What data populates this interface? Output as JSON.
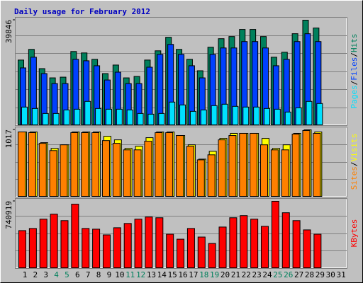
{
  "chart_data": {
    "title": "Daily usage for February 2012",
    "categories": [
      "1",
      "2",
      "3",
      "4",
      "5",
      "6",
      "7",
      "8",
      "9",
      "10",
      "11",
      "12",
      "13",
      "14",
      "15",
      "16",
      "17",
      "18",
      "19",
      "20",
      "21",
      "22",
      "23",
      "24",
      "25",
      "26",
      "27",
      "28",
      "29",
      "30",
      "31"
    ],
    "category_colors": [
      "#000000",
      "#000000",
      "#000000",
      "#00805c",
      "#00805c",
      "#000000",
      "#000000",
      "#000000",
      "#000000",
      "#000000",
      "#00805c",
      "#00805c",
      "#000000",
      "#000000",
      "#000000",
      "#000000",
      "#000000",
      "#00805c",
      "#00805c",
      "#000000",
      "#000000",
      "#000000",
      "#000000",
      "#000000",
      "#00805c",
      "#00805c",
      "#000000",
      "#000000",
      "#000000",
      "#000000",
      "#000000"
    ],
    "legend_separator": "/",
    "grid": true,
    "panels": [
      {
        "type": "bar",
        "ylim": [
          0,
          39846
        ],
        "yticks": [
          39846
        ],
        "series": [
          {
            "name": "Hits",
            "color": "#00805c",
            "values": [
              24670,
              28730,
              21410,
              17890,
              18160,
              27920,
              27380,
              24940,
              19520,
              22770,
              17890,
              18430,
              24670,
              28190,
              33340,
              28730,
              24940,
              20600,
              29550,
              32800,
              33610,
              36320,
              36320,
              33610,
              25750,
              27650,
              34700,
              39846,
              36870,
              null,
              null
            ]
          },
          {
            "name": "Files",
            "color": "#0040ff",
            "values": [
              21680,
              25750,
              19520,
              15720,
              15720,
              24940,
              24390,
              22500,
              17070,
              20060,
              15720,
              15720,
              21950,
              26830,
              30630,
              26830,
              22500,
              17890,
              26830,
              29270,
              29270,
              31710,
              31710,
              29270,
              22500,
              24940,
              31710,
              34690,
              31710,
              null,
              null
            ]
          },
          {
            "name": "Pages",
            "color": "#00e0ff",
            "values": [
              6780,
              6230,
              4340,
              4340,
              5690,
              5960,
              8940,
              6230,
              5960,
              5960,
              5690,
              4340,
              4070,
              4340,
              8670,
              7590,
              5150,
              5690,
              7320,
              7860,
              7050,
              6780,
              6780,
              6230,
              5960,
              4880,
              6500,
              8940,
              8130,
              null,
              null
            ]
          }
        ]
      },
      {
        "type": "bar",
        "ylim": [
          0,
          1017
        ],
        "yticks": [
          1017
        ],
        "series": [
          {
            "name": "Visits",
            "color": "#ffff00",
            "values": [
              985,
              985,
              821,
              733,
              788,
              985,
              985,
              985,
              919,
              864,
              733,
              766,
              897,
              985,
              985,
              930,
              788,
              569,
              689,
              886,
              963,
              963,
              963,
              886,
              733,
              788,
              963,
              1017,
              985,
              null,
              null
            ]
          },
          {
            "name": "Sites",
            "color": "#ff8000",
            "values": [
              985,
              974,
              810,
              700,
              788,
              974,
              974,
              974,
              853,
              810,
              711,
              711,
              843,
              974,
              974,
              930,
              766,
              558,
              635,
              864,
              930,
              963,
              963,
              788,
              711,
              711,
              952,
              1006,
              963,
              null,
              null
            ]
          }
        ]
      },
      {
        "type": "bar",
        "ylim": [
          0,
          740919
        ],
        "yticks": [
          740919
        ],
        "series": [
          {
            "name": "KBytes",
            "color": "#ff0000",
            "values": [
              414280,
              438190,
              541760,
              597530,
              525820,
              709060,
              438190,
              430220,
              366480,
              446150,
              493950,
              541760,
              565660,
              557690,
              374450,
              318680,
              438190,
              342580,
              270880,
              454120,
              557690,
              581590,
              541760,
              462090,
              740919,
              613460,
              525820,
              422250,
              374450,
              null,
              null
            ]
          }
        ]
      }
    ]
  }
}
